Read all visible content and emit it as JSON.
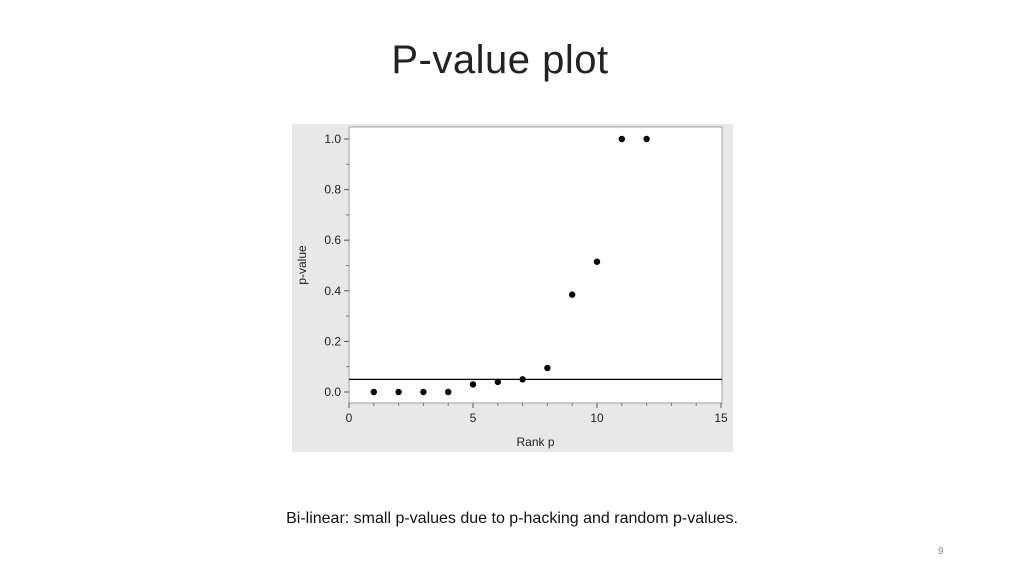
{
  "slide": {
    "title": "P-value plot",
    "caption": "Bi-linear: small p-values due to p-hacking and random p-values.",
    "page_number": "9"
  },
  "colors": {
    "panel_background": "#e8e8e8",
    "plot_background": "#ffffff",
    "points": "#000000",
    "reference_line": "#000000"
  },
  "chart_data": {
    "type": "scatter",
    "title": "",
    "xlabel": "Rank p",
    "ylabel": "p-value",
    "xlim": [
      0,
      15
    ],
    "ylim": [
      0,
      1.0
    ],
    "x_ticks": [
      0,
      5,
      10,
      15
    ],
    "x_tick_labels": [
      "0",
      "5",
      "10",
      "15"
    ],
    "y_ticks": [
      0,
      0.2,
      0.4,
      0.6,
      0.8,
      1.0
    ],
    "y_tick_labels": [
      "0.0",
      "0.2",
      "0.4",
      "0.6",
      "0.8",
      "1.0"
    ],
    "grid": false,
    "reference_line": {
      "type": "horizontal",
      "y": 0.05
    },
    "series": [
      {
        "x": [
          1,
          2,
          3,
          4,
          5,
          6,
          7,
          8,
          9,
          10,
          11,
          12
        ],
        "y": [
          0.0,
          0.0,
          0.0,
          0.0,
          0.03,
          0.04,
          0.05,
          0.095,
          0.385,
          0.515,
          1.0,
          1.0
        ]
      }
    ]
  }
}
